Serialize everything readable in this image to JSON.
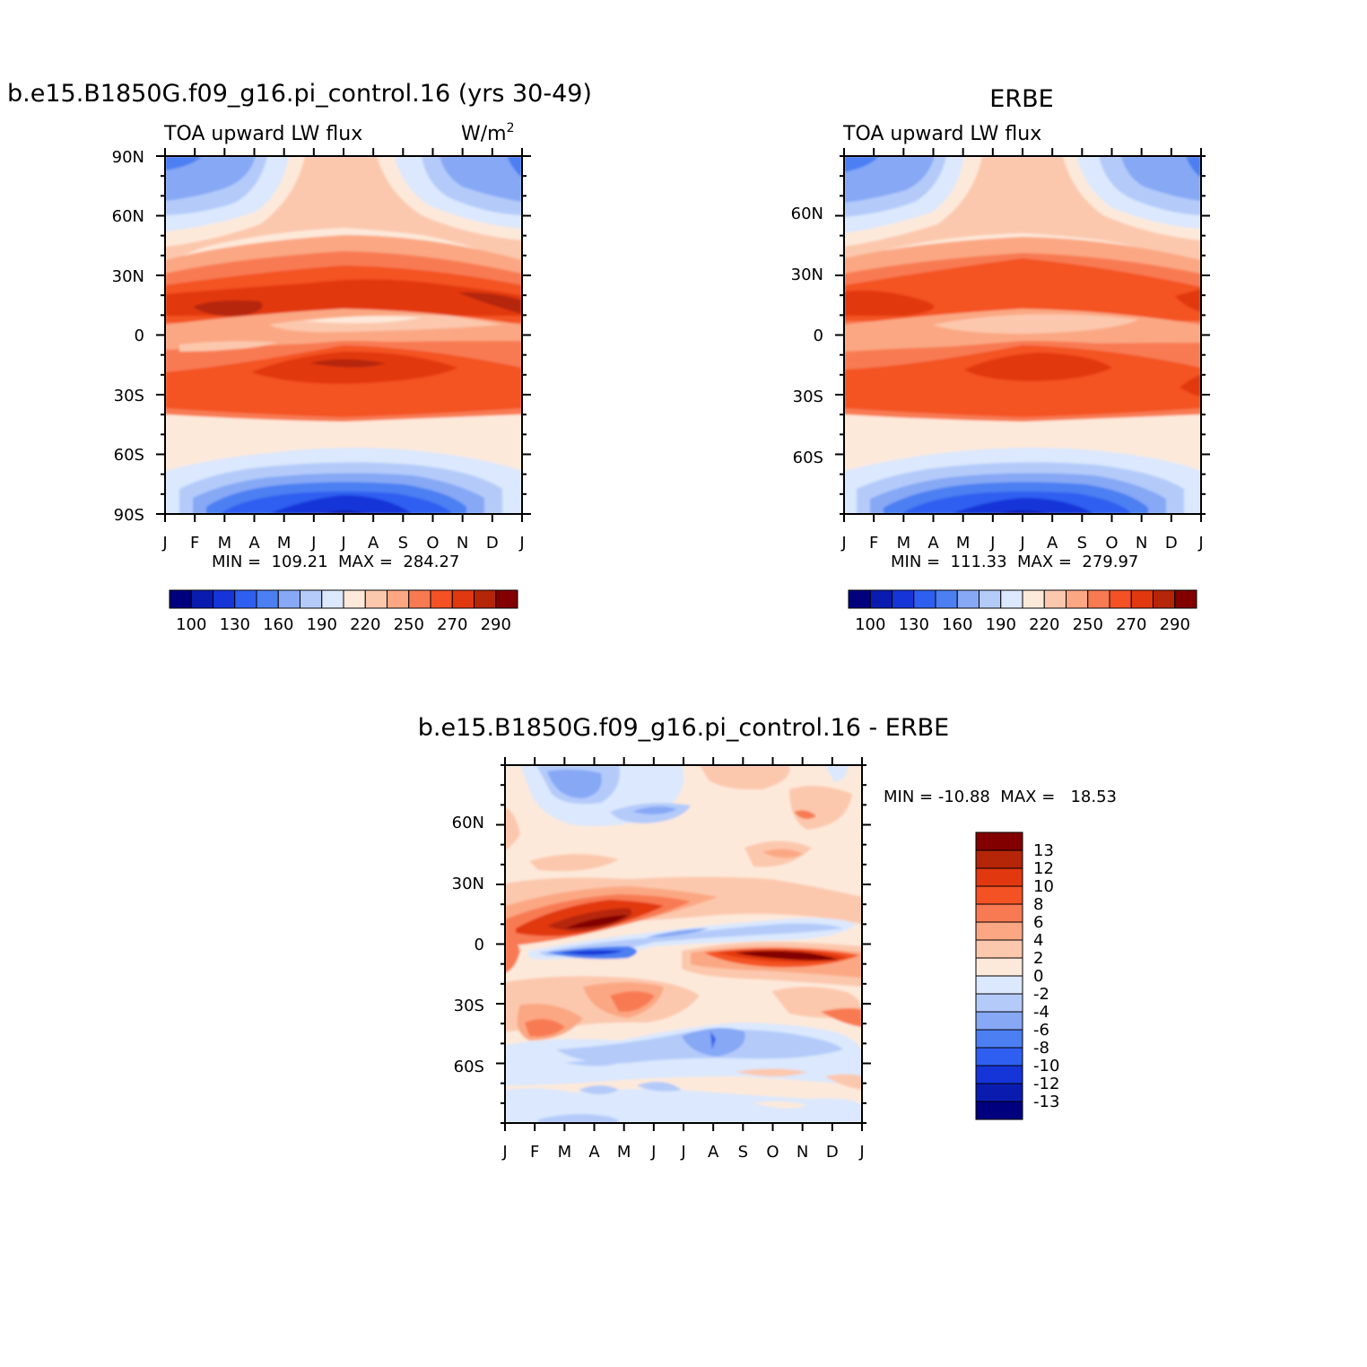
{
  "colors": {
    "model_obs_palette": [
      "#00007f",
      "#0a1cb0",
      "#1535d9",
      "#2e5ff0",
      "#4b7ff2",
      "#86a8f5",
      "#b4cbfa",
      "#dbe8fd",
      "#fde9da",
      "#fcc8ad",
      "#fba783",
      "#f87a52",
      "#f45224",
      "#e23810",
      "#b52507",
      "#820000"
    ],
    "diff_palette": [
      "#00007f",
      "#0a1cb0",
      "#1535d9",
      "#2e5ff0",
      "#4b7ff2",
      "#86a8f5",
      "#b4cbfa",
      "#dbe8fd",
      "#fde9da",
      "#fcc8ad",
      "#fba783",
      "#f87a52",
      "#f45224",
      "#e23810",
      "#b52507",
      "#820000"
    ]
  },
  "panels": {
    "model": {
      "title": "b.e15.B1850G.f09_g16.pi_control.16 (yrs 30-49)",
      "subtitle": "TOA upward LW flux",
      "units": "W/m",
      "units_sup": "2",
      "lat_labels": [
        "90N",
        "60N",
        "30N",
        "0",
        "30S",
        "60S",
        "90S"
      ],
      "month_labels": [
        "J",
        "F",
        "M",
        "A",
        "M",
        "J",
        "J",
        "A",
        "S",
        "O",
        "N",
        "D",
        "J"
      ],
      "stats": "MIN =  109.21  MAX =  284.27",
      "colorbar_labels": [
        "100",
        "130",
        "160",
        "190",
        "220",
        "250",
        "270",
        "290"
      ]
    },
    "obs": {
      "title": "ERBE",
      "subtitle": "TOA upward LW flux",
      "lat_labels": [
        "60N",
        "30N",
        "0",
        "30S",
        "60S"
      ],
      "month_labels": [
        "J",
        "F",
        "M",
        "A",
        "M",
        "J",
        "J",
        "A",
        "S",
        "O",
        "N",
        "D",
        "J"
      ],
      "stats": "MIN =  111.33  MAX =  279.97",
      "colorbar_labels": [
        "100",
        "130",
        "160",
        "190",
        "220",
        "250",
        "270",
        "290"
      ]
    },
    "diff": {
      "title": "b.e15.B1850G.f09_g16.pi_control.16 - ERBE",
      "lat_labels": [
        "60N",
        "30N",
        "0",
        "30S",
        "60S"
      ],
      "month_labels": [
        "J",
        "F",
        "M",
        "A",
        "M",
        "J",
        "J",
        "A",
        "S",
        "O",
        "N",
        "D",
        "J"
      ],
      "stats": "MIN = -10.88  MAX =   18.53",
      "colorbar_labels": [
        "13",
        "12",
        "10",
        "8",
        "6",
        "4",
        "2",
        "0",
        "-2",
        "-4",
        "-6",
        "-8",
        "-10",
        "-12",
        "-13"
      ]
    }
  },
  "chart_data": [
    {
      "type": "heatmap",
      "title": "b.e15.B1850G.f09_g16.pi_control.16 (yrs 30-49)",
      "subtitle": "TOA upward LW flux",
      "units": "W/m2",
      "x": [
        "J",
        "F",
        "M",
        "A",
        "M",
        "J",
        "J",
        "A",
        "S",
        "O",
        "N",
        "D",
        "J"
      ],
      "ylim": [
        -90,
        90
      ],
      "y_ticks": [
        "90N",
        "60N",
        "30N",
        "0",
        "30S",
        "60S",
        "90S"
      ],
      "levels": [
        100,
        110,
        130,
        145,
        160,
        175,
        190,
        205,
        220,
        235,
        250,
        260,
        270,
        280,
        290
      ],
      "min": 109.21,
      "max": 284.27
    },
    {
      "type": "heatmap",
      "title": "ERBE",
      "subtitle": "TOA upward LW flux",
      "x": [
        "J",
        "F",
        "M",
        "A",
        "M",
        "J",
        "J",
        "A",
        "S",
        "O",
        "N",
        "D",
        "J"
      ],
      "ylim": [
        -90,
        90
      ],
      "y_ticks": [
        "60N",
        "30N",
        "0",
        "30S",
        "60S"
      ],
      "levels": [
        100,
        110,
        130,
        145,
        160,
        175,
        190,
        205,
        220,
        235,
        250,
        260,
        270,
        280,
        290
      ],
      "min": 111.33,
      "max": 279.97
    },
    {
      "type": "heatmap",
      "title": "b.e15.B1850G.f09_g16.pi_control.16 - ERBE",
      "x": [
        "J",
        "F",
        "M",
        "A",
        "M",
        "J",
        "J",
        "A",
        "S",
        "O",
        "N",
        "D",
        "J"
      ],
      "ylim": [
        -90,
        90
      ],
      "y_ticks": [
        "60N",
        "30N",
        "0",
        "30S",
        "60S"
      ],
      "levels": [
        -13,
        -12,
        -10,
        -8,
        -6,
        -4,
        -2,
        0,
        2,
        4,
        6,
        8,
        10,
        12,
        13
      ],
      "min": -10.88,
      "max": 18.53
    }
  ]
}
